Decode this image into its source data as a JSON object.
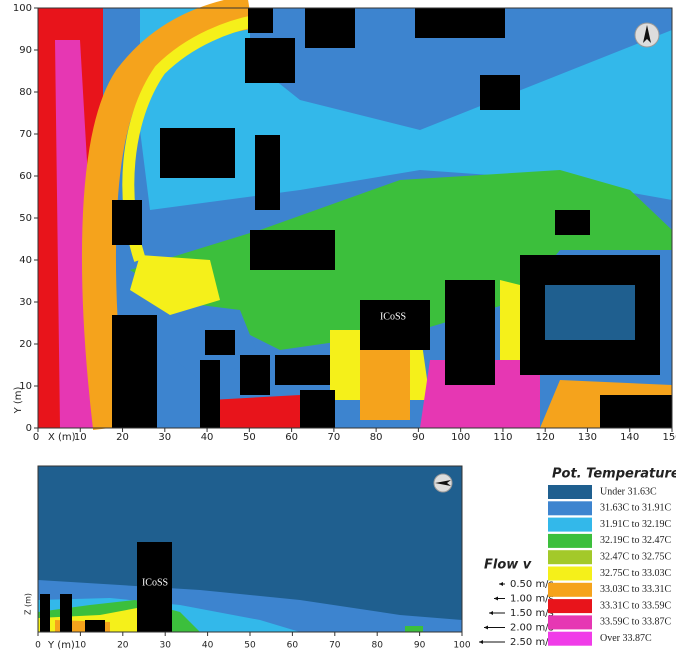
{
  "plan": {
    "x_label": "X (m)",
    "y_label": "Y (m)",
    "annotation": "ICoSS",
    "x_ticks": [
      0,
      10,
      20,
      30,
      40,
      50,
      60,
      70,
      80,
      90,
      100,
      110,
      120,
      130,
      140,
      150
    ],
    "y_ticks": [
      0,
      10,
      20,
      30,
      40,
      50,
      60,
      70,
      80,
      90,
      100
    ]
  },
  "section": {
    "x_label": "Y (m)",
    "y_label": "Z (m)",
    "annotation": "ICoSS",
    "x_ticks": [
      0,
      10,
      20,
      30,
      40,
      50,
      60,
      70,
      80,
      90,
      100
    ]
  },
  "flow_legend": {
    "title": "Flow v",
    "entries": [
      "0.50 m/s",
      "1.00 m/s",
      "1.50 m/s",
      "2.00 m/s",
      "2.50 m/s"
    ]
  },
  "temp_legend": {
    "title": "Pot. Temperature",
    "entries": [
      {
        "label": "Under 31.63C",
        "color": "#1f5f8f"
      },
      {
        "label": "31.63C to 31.91C",
        "color": "#3d84cf"
      },
      {
        "label": "31.91C to 32.19C",
        "color": "#33b8ea"
      },
      {
        "label": "32.19C to 32.47C",
        "color": "#3cbf3c"
      },
      {
        "label": "32.47C to 32.75C",
        "color": "#a3c92a"
      },
      {
        "label": "32.75C to 33.03C",
        "color": "#f5f01a"
      },
      {
        "label": "33.03C to 33.31C",
        "color": "#f5a31c"
      },
      {
        "label": "33.31C to 33.59C",
        "color": "#e8141b"
      },
      {
        "label": "33.59C to 33.87C",
        "color": "#e637b3"
      },
      {
        "label": "Over  33.87C",
        "color": "#f03ce8"
      }
    ]
  }
}
